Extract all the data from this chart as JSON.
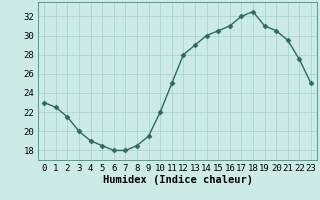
{
  "x": [
    0,
    1,
    2,
    3,
    4,
    5,
    6,
    7,
    8,
    9,
    10,
    11,
    12,
    13,
    14,
    15,
    16,
    17,
    18,
    19,
    20,
    21,
    22,
    23
  ],
  "y": [
    23,
    22.5,
    21.5,
    20,
    19,
    18.5,
    18,
    18,
    18.5,
    19.5,
    22,
    25,
    28,
    29,
    30,
    30.5,
    31,
    32,
    32.5,
    31,
    30.5,
    29.5,
    27.5,
    25
  ],
  "xlabel": "Humidex (Indice chaleur)",
  "xlim": [
    -0.5,
    23.5
  ],
  "ylim": [
    17,
    33.5
  ],
  "yticks": [
    18,
    20,
    22,
    24,
    26,
    28,
    30,
    32
  ],
  "xticks": [
    0,
    1,
    2,
    3,
    4,
    5,
    6,
    7,
    8,
    9,
    10,
    11,
    12,
    13,
    14,
    15,
    16,
    17,
    18,
    19,
    20,
    21,
    22,
    23
  ],
  "line_color": "#2e6b5e",
  "marker": "D",
  "marker_size": 2.5,
  "bg_color": "#cceae7",
  "grid_color": "#aad4d0",
  "tick_label_fontsize": 6.5,
  "xlabel_fontsize": 7.5,
  "line_width": 1.0
}
